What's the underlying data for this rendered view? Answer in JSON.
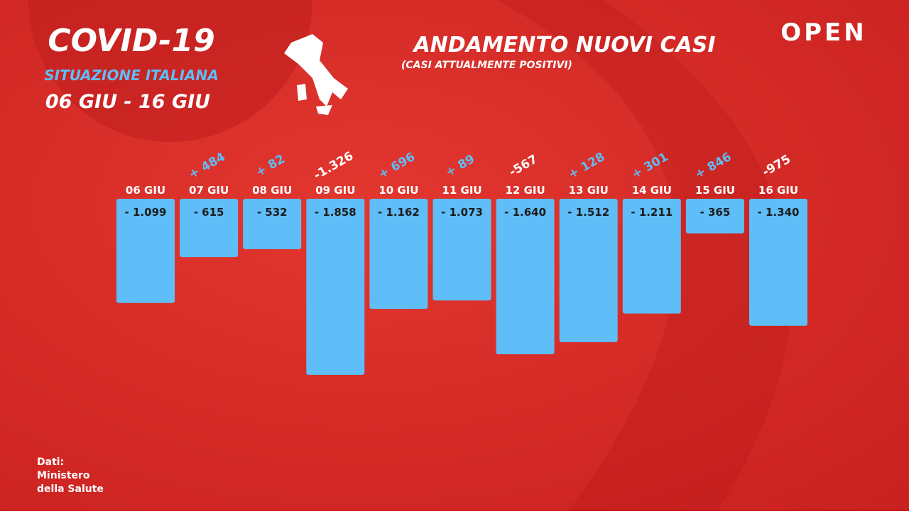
{
  "chart_data": {
    "type": "bar",
    "title": "ANDAMENTO NUOVI CASI",
    "subtitle": "(CASI ATTUALMENTE POSITIVI)",
    "header": {
      "title": "COVID-19",
      "region": "SITUAZIONE ITALIANA",
      "period": "06 GIU - 16 GIU"
    },
    "brand": "OPEN",
    "source": [
      "Dati:",
      "Ministero",
      "della Salute"
    ],
    "categories": [
      "06 GIU",
      "07 GIU",
      "08 GIU",
      "09 GIU",
      "10 GIU",
      "11 GIU",
      "12 GIU",
      "13 GIU",
      "14 GIU",
      "15 GIU",
      "16 GIU"
    ],
    "values": [
      -1099,
      -615,
      -532,
      -1858,
      -1162,
      -1073,
      -1640,
      -1512,
      -1211,
      -365,
      -1340
    ],
    "value_labels": [
      "- 1.099",
      "- 615",
      "- 532",
      "- 1.858",
      "- 1.162",
      "- 1.073",
      "- 1.640",
      "- 1.512",
      "- 1.211",
      "- 365",
      "- 1.340"
    ],
    "change_values": [
      null,
      484,
      82,
      -1326,
      696,
      89,
      -567,
      128,
      301,
      846,
      -975
    ],
    "change_labels": [
      null,
      "+ 484",
      "+ 82",
      "-1.326",
      "+ 696",
      "+ 89",
      "-567",
      "+ 128",
      "+ 301",
      "+ 846",
      "-975"
    ],
    "color": "#5fbdf7",
    "up_color": "#5fbdf7",
    "down_color": "#ffffff",
    "ylim": [
      -2000,
      0
    ]
  }
}
